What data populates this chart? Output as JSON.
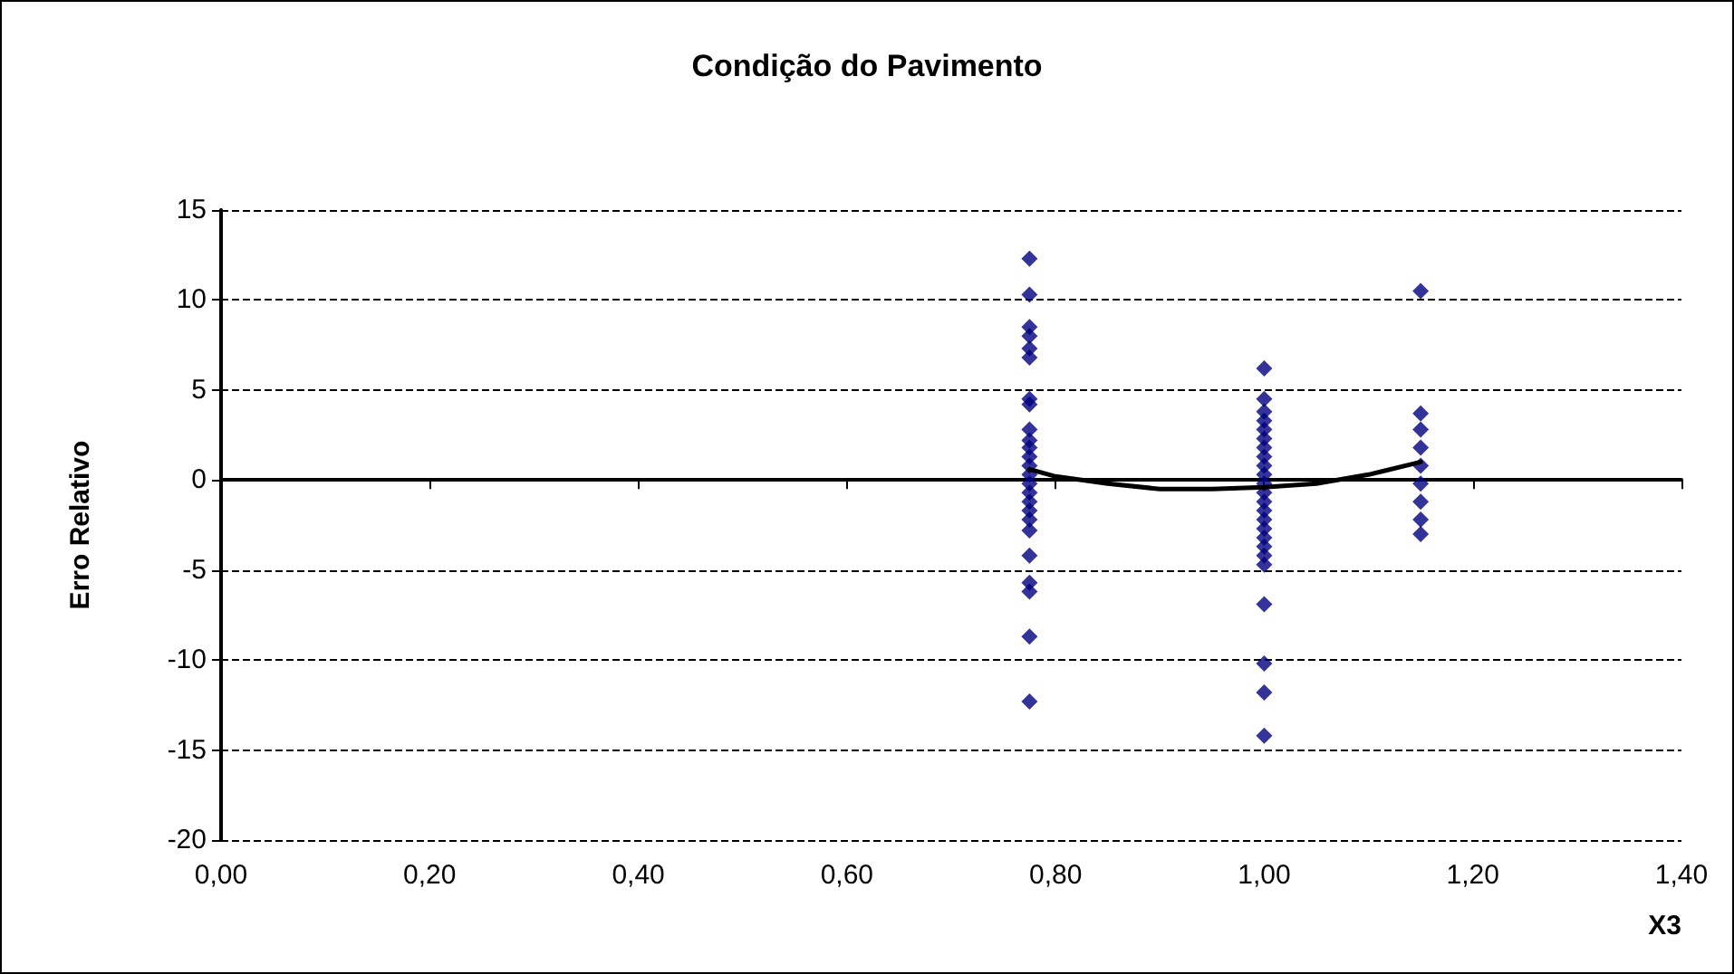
{
  "chart_data": {
    "type": "scatter",
    "title": "Condição do Pavimento",
    "xlabel": "X3",
    "ylabel": "Erro Relativo",
    "xlim": [
      0,
      1.4
    ],
    "xticks": [
      {
        "value": 0,
        "label": "0,00"
      },
      {
        "value": 0.2,
        "label": "0,20"
      },
      {
        "value": 0.4,
        "label": "0,40"
      },
      {
        "value": 0.6,
        "label": "0,60"
      },
      {
        "value": 0.8,
        "label": "0,80"
      },
      {
        "value": 1,
        "label": "1,00"
      },
      {
        "value": 1.2,
        "label": "1,20"
      },
      {
        "value": 1.4,
        "label": "1,40"
      }
    ],
    "ylim": [
      -20,
      15
    ],
    "yticks": [
      -20,
      -15,
      -10,
      -5,
      0,
      5,
      10,
      15
    ],
    "grid": "y",
    "marker": "diamond",
    "series": [
      {
        "color": "#000080",
        "x": [
          0.775,
          0.775,
          0.775,
          0.775,
          0.775,
          0.775,
          0.775,
          0.775,
          0.775,
          0.775,
          0.775,
          0.775,
          0.775,
          0.775,
          0.775,
          0.775,
          0.775,
          0.775,
          0.775,
          0.775,
          0.775,
          0.775,
          0.775,
          0.775,
          0.775,
          1,
          1,
          1,
          1,
          1,
          1,
          1,
          1,
          1,
          1,
          1,
          1,
          1,
          1,
          1,
          1,
          1,
          1,
          1,
          1,
          1,
          1,
          1,
          1,
          1.15,
          1.15,
          1.15,
          1.15,
          1.15,
          1.15,
          1.15,
          1.15,
          1.15
        ],
        "values": [
          12.3,
          10.3,
          8.5,
          8.0,
          7.3,
          6.8,
          4.5,
          4.2,
          2.8,
          2.2,
          1.8,
          1.3,
          0.8,
          0.3,
          -0.2,
          -0.7,
          -1.2,
          -1.7,
          -2.2,
          -2.8,
          -4.2,
          -5.7,
          -6.2,
          -8.7,
          -12.3,
          6.2,
          4.5,
          3.8,
          3.3,
          2.8,
          2.3,
          1.8,
          1.3,
          0.8,
          0.3,
          -0.2,
          -0.7,
          -1.2,
          -1.7,
          -2.2,
          -2.7,
          -3.2,
          -3.7,
          -4.2,
          -4.7,
          -6.9,
          -10.2,
          -11.8,
          -14.2,
          10.5,
          3.7,
          2.8,
          1.8,
          0.8,
          -0.2,
          -1.2,
          -2.2,
          -3.0
        ]
      },
      {
        "type": "line",
        "color": "#000000",
        "marker": "none",
        "x": [
          0.775,
          0.8,
          0.85,
          0.9,
          0.95,
          1,
          1.05,
          1.1,
          1.15
        ],
        "values": [
          0.6,
          0.2,
          -0.2,
          -0.5,
          -0.5,
          -0.4,
          -0.2,
          0.3,
          1.0
        ]
      }
    ]
  }
}
